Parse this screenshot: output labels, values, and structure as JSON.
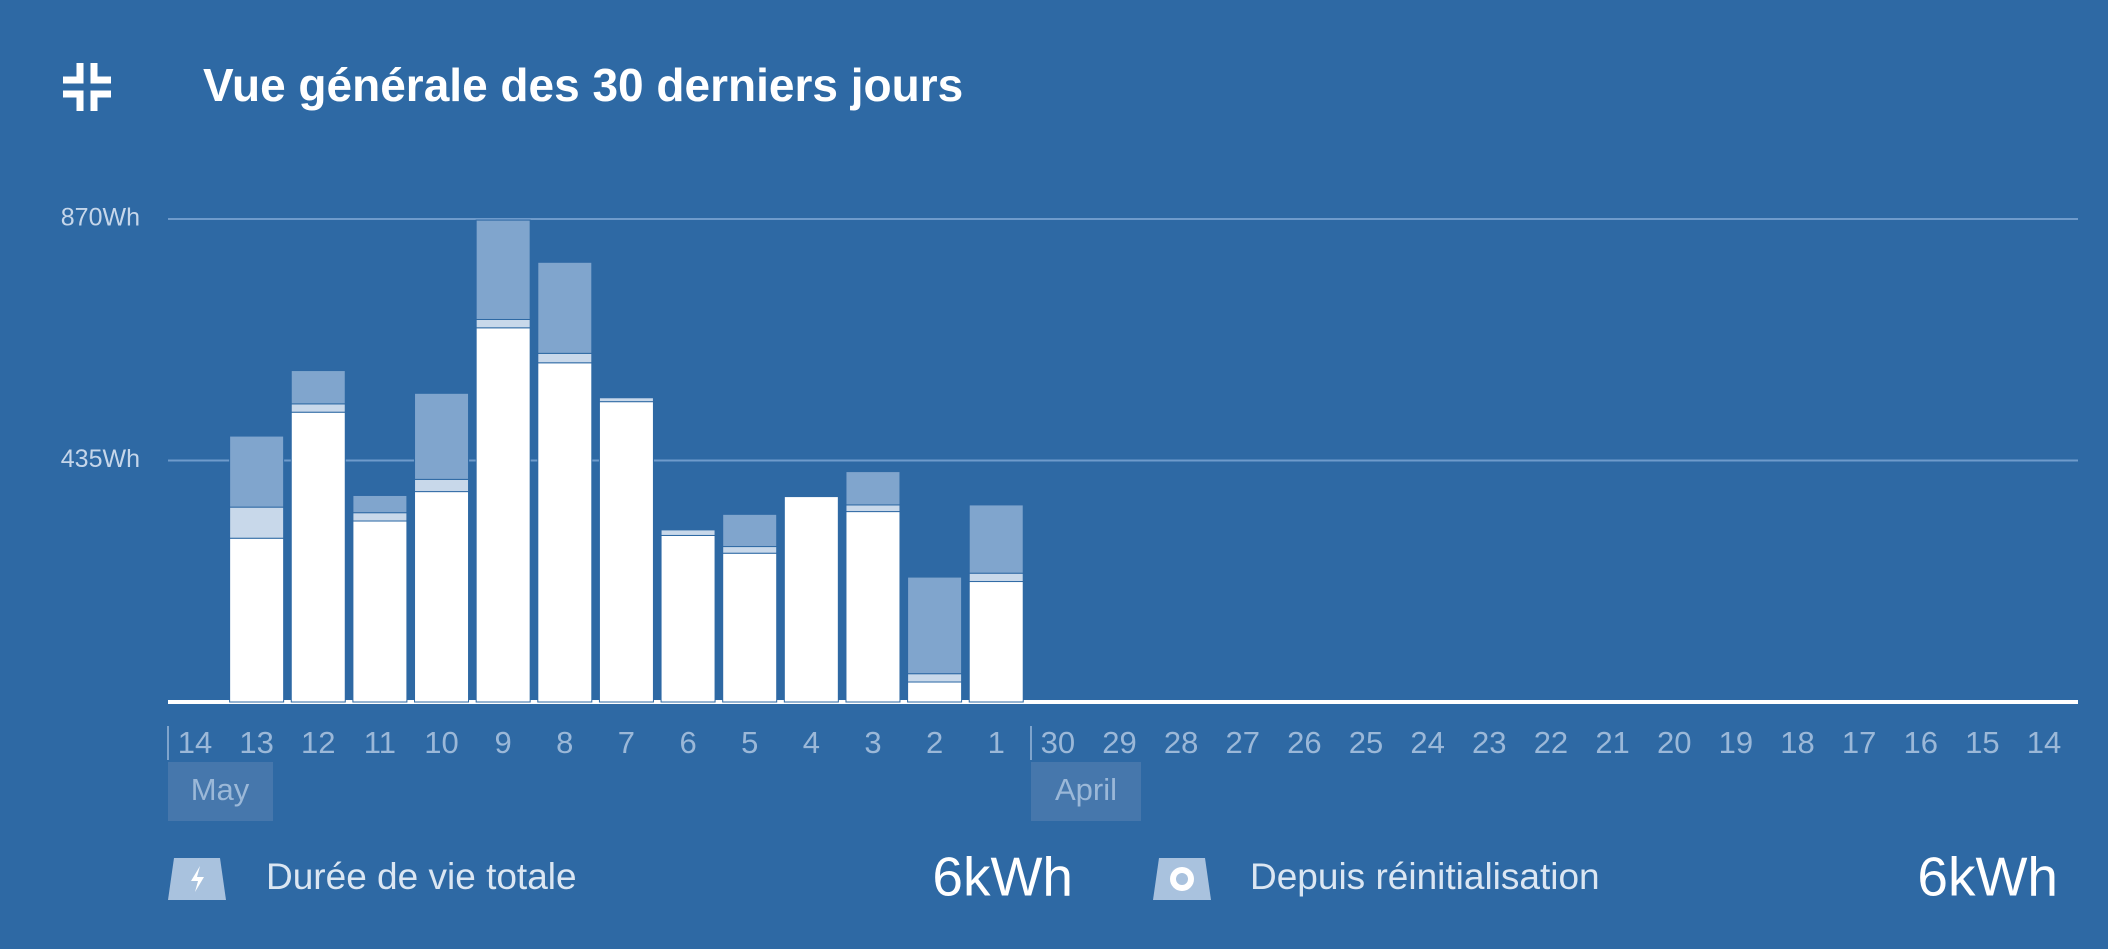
{
  "header": {
    "title": "Vue générale des 30 derniers jours"
  },
  "chart_data": {
    "type": "stacked-bar",
    "categories": [
      "14",
      "13",
      "12",
      "11",
      "10",
      "9",
      "8",
      "7",
      "6",
      "5",
      "4",
      "3",
      "2",
      "1",
      "30",
      "29",
      "28",
      "27",
      "26",
      "25",
      "24",
      "23",
      "22",
      "21",
      "20",
      "19",
      "18",
      "17",
      "16",
      "15",
      "14"
    ],
    "series": [
      {
        "color": "#ffffff",
        "values": [
          null,
          295,
          522,
          326,
          379,
          674,
          611,
          541,
          300,
          268,
          370,
          343,
          36,
          217,
          null,
          null,
          null,
          null,
          null,
          null,
          null,
          null,
          null,
          null,
          null,
          null,
          null,
          null,
          null,
          null,
          null
        ]
      },
      {
        "color": "#c8d8ea",
        "values": [
          null,
          56,
          15,
          15,
          22,
          15,
          17,
          7,
          10,
          12,
          null,
          12,
          15,
          15,
          null,
          null,
          null,
          null,
          null,
          null,
          null,
          null,
          null,
          null,
          null,
          null,
          null,
          null,
          null,
          null,
          null
        ]
      },
      {
        "color": "#80a5cd",
        "values": [
          null,
          128,
          60,
          31,
          155,
          179,
          164,
          null,
          null,
          58,
          null,
          60,
          174,
          123,
          null,
          null,
          null,
          null,
          null,
          null,
          null,
          null,
          null,
          null,
          null,
          null,
          null,
          null,
          null,
          null,
          null
        ]
      }
    ],
    "months": [
      "May",
      "April"
    ],
    "ylim": [
      0,
      870
    ],
    "yticks": [
      {
        "value": 435,
        "label": "435Wh"
      },
      {
        "value": 870,
        "label": "870Wh"
      }
    ],
    "grid": true
  },
  "footer": {
    "items": [
      {
        "label": "Durée de vie totale",
        "value": "6kWh"
      },
      {
        "label": "Depuis réinitialisation",
        "value": "6kWh"
      }
    ]
  }
}
